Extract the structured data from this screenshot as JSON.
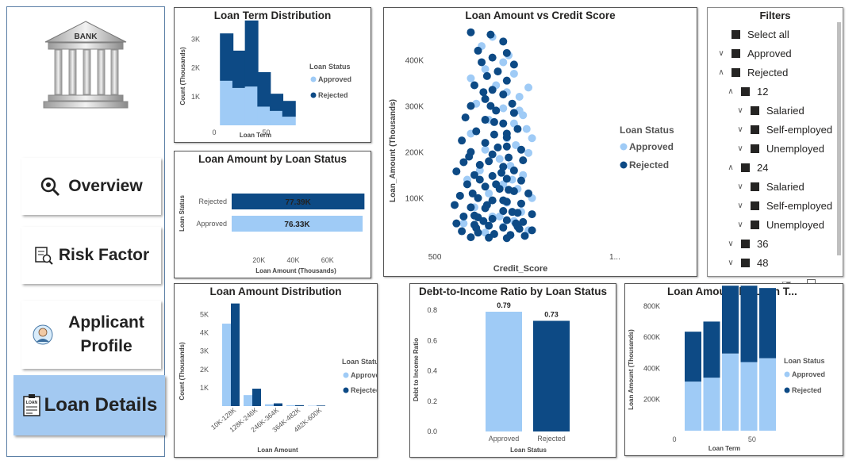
{
  "nav": {
    "bank_label": "BANK",
    "items": [
      {
        "label": "Overview"
      },
      {
        "label": "Risk Factor"
      },
      {
        "label": "Applicant Profile"
      },
      {
        "label": "Loan Details"
      }
    ]
  },
  "colors": {
    "approved": "#9fcbf6",
    "rejected": "#0d4a85",
    "nav_active": "#a3c9f1"
  },
  "legend": {
    "title": "Loan Status",
    "approved": "Approved",
    "rejected": "Rejected"
  },
  "filters": {
    "title": "Filters",
    "items": [
      {
        "label": "Select all",
        "indent": 0,
        "chevron": ""
      },
      {
        "label": "Approved",
        "indent": 0,
        "chevron": "down"
      },
      {
        "label": "Rejected",
        "indent": 0,
        "chevron": "up"
      },
      {
        "label": "12",
        "indent": 1,
        "chevron": "up"
      },
      {
        "label": "Salaried",
        "indent": 2,
        "chevron": "down"
      },
      {
        "label": "Self-employed",
        "indent": 2,
        "chevron": "down"
      },
      {
        "label": "Unemployed",
        "indent": 2,
        "chevron": "down"
      },
      {
        "label": "24",
        "indent": 1,
        "chevron": "up"
      },
      {
        "label": "Salaried",
        "indent": 2,
        "chevron": "down"
      },
      {
        "label": "Self-employed",
        "indent": 2,
        "chevron": "down"
      },
      {
        "label": "Unemployed",
        "indent": 2,
        "chevron": "down"
      },
      {
        "label": "36",
        "indent": 1,
        "chevron": "down"
      },
      {
        "label": "48",
        "indent": 1,
        "chevron": "down"
      }
    ]
  },
  "chart_data": [
    {
      "id": "loan-term-distribution",
      "type": "bar",
      "stacked": true,
      "title": "Loan Term Distribution",
      "xlabel": "Loan Term",
      "ylabel": "Count (Thousands)",
      "x": [
        12,
        24,
        36,
        48,
        60,
        72
      ],
      "xticks": [
        {
          "v": 0,
          "t": "0"
        },
        {
          "v": 50,
          "t": "50"
        }
      ],
      "xlim": [
        0,
        84
      ],
      "yticks": [
        {
          "v": 1,
          "t": "1K"
        },
        {
          "v": 2,
          "t": "2K"
        },
        {
          "v": 3,
          "t": "3K"
        }
      ],
      "ylim": [
        0,
        3.7
      ],
      "series": [
        {
          "name": "Approved",
          "values": [
            1.55,
            1.3,
            1.35,
            0.65,
            0.5,
            0.3
          ]
        },
        {
          "name": "Rejected",
          "values": [
            1.65,
            1.3,
            2.3,
            1.2,
            0.6,
            0.55
          ]
        }
      ],
      "legend": "right"
    },
    {
      "id": "loan-amount-by-status",
      "type": "bar",
      "orientation": "horizontal",
      "title": "Loan Amount by Loan Status",
      "xlabel": "Loan Amount (Thousands)",
      "ylabel": "Loan Status",
      "categories": [
        "Rejected",
        "Approved"
      ],
      "values": [
        77.39,
        76.33
      ],
      "data_labels": [
        "77.39K",
        "76.33K"
      ],
      "xticks": [
        {
          "v": 20,
          "t": "20K"
        },
        {
          "v": 40,
          "t": "40K"
        },
        {
          "v": 60,
          "t": "60K"
        }
      ],
      "xlim": [
        0,
        80
      ]
    },
    {
      "id": "loan-amount-vs-credit-score",
      "type": "scatter",
      "title": "Loan Amount vs Credit Score",
      "xlabel": "Credit_Score",
      "ylabel": "Loan_Amount (Thousands)",
      "xticks": [
        {
          "v": 500,
          "t": "500"
        },
        {
          "v": 1000,
          "t": "1..."
        }
      ],
      "yticks": [
        {
          "v": 100,
          "t": "100K"
        },
        {
          "v": 200,
          "t": "200K"
        },
        {
          "v": 300,
          "t": "300K"
        },
        {
          "v": 400,
          "t": "400K"
        }
      ],
      "xlim": [
        480,
        1020
      ],
      "ylim": [
        10,
        475
      ],
      "series": [
        {
          "name": "Approved",
          "points": [
            [
              660,
              450
            ],
            [
              630,
              430
            ],
            [
              705,
              410
            ],
            [
              690,
              395
            ],
            [
              640,
              380
            ],
            [
              720,
              370
            ],
            [
              600,
              360
            ],
            [
              670,
              345
            ],
            [
              700,
              330
            ],
            [
              735,
              320
            ],
            [
              615,
              305
            ],
            [
              690,
              295
            ],
            [
              745,
              280
            ],
            [
              650,
              270
            ],
            [
              720,
              262
            ],
            [
              755,
              250
            ],
            [
              600,
              240
            ],
            [
              700,
              230
            ],
            [
              725,
              215
            ],
            [
              640,
              205
            ],
            [
              760,
              198
            ],
            [
              680,
              185
            ],
            [
              710,
              170
            ],
            [
              625,
              160
            ],
            [
              745,
              150
            ],
            [
              590,
              140
            ],
            [
              690,
              130
            ],
            [
              730,
              120
            ],
            [
              650,
              110
            ],
            [
              770,
              100
            ],
            [
              700,
              90
            ],
            [
              610,
              80
            ],
            [
              740,
              70
            ],
            [
              660,
              60
            ],
            [
              720,
              50
            ],
            [
              580,
              45
            ],
            [
              690,
              38
            ],
            [
              760,
              30
            ],
            [
              640,
              25
            ],
            [
              710,
              20
            ],
            [
              760,
              340
            ],
            [
              735,
              290
            ],
            [
              770,
              230
            ],
            [
              715,
              140
            ],
            [
              680,
              60
            ]
          ]
        },
        {
          "name": "Rejected",
          "points": [
            [
              600,
              460
            ],
            [
              655,
              455
            ],
            [
              690,
              440
            ],
            [
              620,
              420
            ],
            [
              700,
              415
            ],
            [
              660,
              405
            ],
            [
              630,
              395
            ],
            [
              720,
              390
            ],
            [
              675,
              375
            ],
            [
              645,
              365
            ],
            [
              700,
              355
            ],
            [
              610,
              345
            ],
            [
              660,
              335
            ],
            [
              690,
              325
            ],
            [
              640,
              315
            ],
            [
              715,
              305
            ],
            [
              600,
              300
            ],
            [
              670,
              290
            ],
            [
              720,
              285
            ],
            [
              585,
              275
            ],
            [
              640,
              270
            ],
            [
              690,
              262
            ],
            [
              730,
              250
            ],
            [
              615,
              245
            ],
            [
              665,
              238
            ],
            [
              700,
              232
            ],
            [
              575,
              225
            ],
            [
              640,
              220
            ],
            [
              700,
              212
            ],
            [
              740,
              205
            ],
            [
              600,
              200
            ],
            [
              660,
              195
            ],
            [
              705,
              188
            ],
            [
              745,
              182
            ],
            [
              580,
              178
            ],
            [
              625,
              172
            ],
            [
              690,
              168
            ],
            [
              720,
              160
            ],
            [
              560,
              158
            ],
            [
              610,
              150
            ],
            [
              660,
              148
            ],
            [
              700,
              142
            ],
            [
              740,
              138
            ],
            [
              590,
              130
            ],
            [
              640,
              125
            ],
            [
              680,
              120
            ],
            [
              720,
              115
            ],
            [
              760,
              110
            ],
            [
              570,
              105
            ],
            [
              620,
              100
            ],
            [
              660,
              95
            ],
            [
              700,
              92
            ],
            [
              740,
              88
            ],
            [
              555,
              85
            ],
            [
              600,
              80
            ],
            [
              640,
              78
            ],
            [
              690,
              72
            ],
            [
              730,
              68
            ],
            [
              770,
              65
            ],
            [
              580,
              60
            ],
            [
              620,
              58
            ],
            [
              660,
              55
            ],
            [
              700,
              52
            ],
            [
              745,
              48
            ],
            [
              560,
              45
            ],
            [
              610,
              42
            ],
            [
              650,
              40
            ],
            [
              690,
              36
            ],
            [
              735,
              33
            ],
            [
              770,
              30
            ],
            [
              575,
              28
            ],
            [
              620,
              25
            ],
            [
              665,
              22
            ],
            [
              710,
              20
            ],
            [
              750,
              18
            ],
            [
              600,
              15
            ],
            [
              650,
              14
            ],
            [
              700,
              13
            ],
            [
              730,
              38
            ],
            [
              605,
              110
            ],
            [
              675,
              210
            ],
            [
              635,
              330
            ],
            [
              610,
              62
            ],
            [
              650,
              180
            ],
            [
              690,
              95
            ],
            [
              715,
              70
            ],
            [
              625,
              140
            ],
            [
              665,
              265
            ],
            [
              705,
              118
            ],
            [
              595,
              190
            ],
            [
              645,
              85
            ],
            [
              685,
              155
            ],
            [
              725,
              45
            ],
            [
              615,
              35
            ],
            [
              655,
              300
            ],
            [
              700,
              240
            ],
            [
              635,
              50
            ],
            [
              670,
              130
            ]
          ]
        }
      ],
      "legend": "right"
    },
    {
      "id": "loan-amount-distribution",
      "type": "bar",
      "title": "Loan Amount Distribution",
      "xlabel": "Loan Amount",
      "ylabel": "Count (Thousands)",
      "categories": [
        "10K-128K",
        "128K-246K",
        "246K-364K",
        "364K-482K",
        "482K-600K"
      ],
      "series": [
        {
          "name": "Approved",
          "values": [
            4.5,
            0.6,
            0.1,
            0.05,
            0.02
          ]
        },
        {
          "name": "Rejected",
          "values": [
            5.6,
            0.95,
            0.15,
            0.05,
            0.03
          ]
        }
      ],
      "yticks": [
        {
          "v": 1,
          "t": "1K"
        },
        {
          "v": 2,
          "t": "2K"
        },
        {
          "v": 3,
          "t": "3K"
        },
        {
          "v": 4,
          "t": "4K"
        },
        {
          "v": 5,
          "t": "5K"
        }
      ],
      "ylim": [
        0,
        5.8
      ],
      "legend": "right"
    },
    {
      "id": "dti-by-loan-status",
      "type": "bar",
      "title": "Debt-to-Income Ratio by Loan Status",
      "xlabel": "Loan Status",
      "ylabel": "Debt to Income Ratio",
      "categories": [
        "Approved",
        "Rejected"
      ],
      "values": [
        0.79,
        0.73
      ],
      "data_labels": [
        "0.79",
        "0.73"
      ],
      "yticks": [
        {
          "v": 0,
          "t": "0.0"
        },
        {
          "v": 0.2,
          "t": "0.2"
        },
        {
          "v": 0.4,
          "t": "0.4"
        },
        {
          "v": 0.6,
          "t": "0.6"
        },
        {
          "v": 0.8,
          "t": "0.8"
        }
      ],
      "ylim": [
        0,
        0.9
      ]
    },
    {
      "id": "loan-amount-by-loan-term",
      "type": "bar",
      "stacked": true,
      "title": "Loan Amount by Loan T...",
      "xlabel": "Loan Term",
      "ylabel": "Loan Amount (Thousands)",
      "x": [
        12,
        24,
        36,
        48,
        60
      ],
      "xticks": [
        {
          "v": 0,
          "t": "0"
        },
        {
          "v": 50,
          "t": "50"
        }
      ],
      "xlim": [
        0,
        72
      ],
      "yticks": [
        {
          "v": 200,
          "t": "200K"
        },
        {
          "v": 400,
          "t": "400K"
        },
        {
          "v": 600,
          "t": "600K"
        },
        {
          "v": 800,
          "t": "800K"
        }
      ],
      "ylim": [
        0,
        870
      ],
      "series": [
        {
          "name": "Approved",
          "values": [
            315,
            340,
            495,
            440,
            465
          ]
        },
        {
          "name": "Rejected",
          "values": [
            320,
            360,
            435,
            490,
            450
          ]
        }
      ],
      "legend": "right"
    }
  ]
}
